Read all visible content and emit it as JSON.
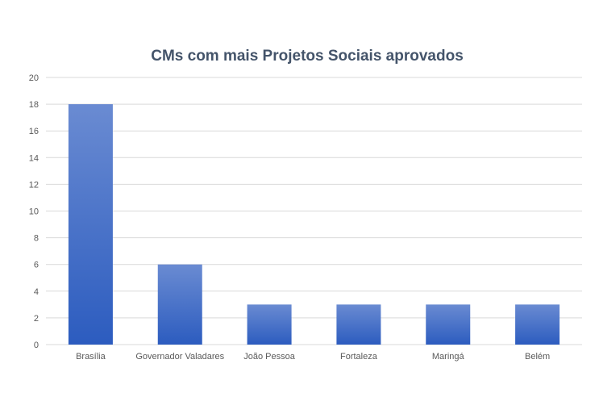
{
  "chart_data": {
    "type": "bar",
    "title": "CMs com mais Projetos Sociais aprovados",
    "xlabel": "",
    "ylabel": "",
    "categories": [
      "Brasília",
      "Governador Valadares",
      "João Pessoa",
      "Fortaleza",
      "Maringá",
      "Belém"
    ],
    "values": [
      18,
      6,
      3,
      3,
      3,
      3
    ],
    "ylim": [
      0,
      20
    ],
    "yticks": [
      0,
      2,
      4,
      6,
      8,
      10,
      12,
      14,
      16,
      18,
      20
    ],
    "grid": true,
    "legend": "none",
    "colors": {
      "bar_top": "#6a8bd2",
      "bar_bottom": "#2c5cbf"
    }
  }
}
